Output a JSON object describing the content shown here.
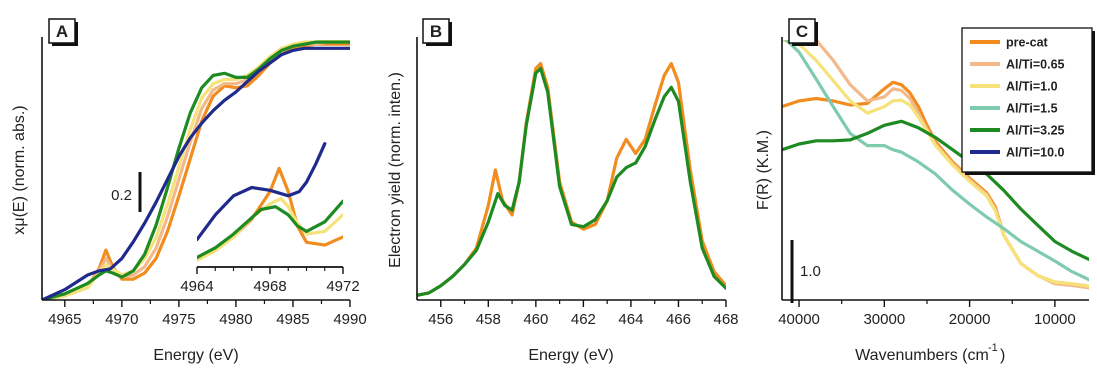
{
  "colors": {
    "pre-cat": "#F28C1E",
    "Al/Ti=0.65": "#F3B98A",
    "Al/Ti=1.0": "#F6E27A",
    "Al/Ti=1.5": "#7FCBAE",
    "Al/Ti=3.25": "#1E8A22",
    "Al/Ti=10.0": "#1F2A8C"
  },
  "chart_data": [
    {
      "panel": "A",
      "type": "line",
      "xlabel": "Energy (eV)",
      "ylabel": "xμ(E) (norm. abs.)",
      "xlim": [
        4963,
        4990
      ],
      "ylim": [
        0,
        1.25
      ],
      "xticks": [
        4965,
        4970,
        4975,
        4980,
        4985,
        4990
      ],
      "scale_bar": "0.2",
      "series": [
        {
          "name": "pre-cat",
          "x": [
            4963,
            4965,
            4967,
            4968,
            4968.6,
            4969.2,
            4970,
            4971,
            4972,
            4973,
            4974,
            4975,
            4976,
            4977,
            4978,
            4979,
            4980,
            4981,
            4982,
            4983,
            4984,
            4985,
            4986,
            4987,
            4988,
            4989,
            4990
          ],
          "y": [
            0,
            0.02,
            0.06,
            0.15,
            0.24,
            0.16,
            0.1,
            0.1,
            0.13,
            0.2,
            0.33,
            0.5,
            0.68,
            0.86,
            0.98,
            1.03,
            1.02,
            1.03,
            1.08,
            1.14,
            1.18,
            1.21,
            1.22,
            1.23,
            1.23,
            1.23,
            1.23
          ]
        },
        {
          "name": "Al/Ti=0.65",
          "x": [
            4963,
            4965,
            4967,
            4968,
            4968.6,
            4969.2,
            4970,
            4971,
            4972,
            4973,
            4974,
            4975,
            4976,
            4977,
            4978,
            4979,
            4980,
            4981,
            4982,
            4983,
            4984,
            4985,
            4986,
            4987,
            4988,
            4989,
            4990
          ],
          "y": [
            0,
            0.02,
            0.06,
            0.14,
            0.2,
            0.15,
            0.11,
            0.12,
            0.16,
            0.25,
            0.4,
            0.58,
            0.76,
            0.92,
            1.01,
            1.04,
            1.04,
            1.06,
            1.11,
            1.16,
            1.2,
            1.22,
            1.23,
            1.23,
            1.24,
            1.24,
            1.24
          ]
        },
        {
          "name": "Al/Ti=1.0",
          "x": [
            4963,
            4965,
            4967,
            4968,
            4968.6,
            4969.2,
            4970,
            4971,
            4972,
            4973,
            4974,
            4975,
            4976,
            4977,
            4978,
            4979,
            4980,
            4981,
            4982,
            4983,
            4984,
            4985,
            4986,
            4987,
            4988,
            4989,
            4990
          ],
          "y": [
            0,
            0.02,
            0.06,
            0.13,
            0.17,
            0.15,
            0.12,
            0.14,
            0.2,
            0.3,
            0.46,
            0.64,
            0.82,
            0.97,
            1.04,
            1.06,
            1.06,
            1.08,
            1.12,
            1.17,
            1.21,
            1.23,
            1.24,
            1.24,
            1.25,
            1.25,
            1.25
          ]
        },
        {
          "name": "Al/Ti=3.25",
          "x": [
            4963,
            4965,
            4967,
            4968,
            4968.6,
            4969.2,
            4970,
            4971,
            4972,
            4973,
            4974,
            4975,
            4976,
            4977,
            4978,
            4979,
            4980,
            4981,
            4982,
            4983,
            4984,
            4985,
            4986,
            4987,
            4988,
            4989,
            4990
          ],
          "y": [
            0,
            0.03,
            0.08,
            0.12,
            0.14,
            0.13,
            0.11,
            0.14,
            0.22,
            0.36,
            0.54,
            0.73,
            0.9,
            1.02,
            1.08,
            1.09,
            1.07,
            1.07,
            1.11,
            1.16,
            1.2,
            1.22,
            1.23,
            1.24,
            1.24,
            1.24,
            1.24
          ]
        },
        {
          "name": "Al/Ti=10.0",
          "x": [
            4963,
            4965,
            4967,
            4968,
            4969,
            4970,
            4971,
            4972,
            4973,
            4974,
            4975,
            4976,
            4977,
            4978,
            4979,
            4980,
            4981,
            4982,
            4983,
            4984,
            4985,
            4986,
            4987,
            4988,
            4989,
            4990
          ],
          "y": [
            0,
            0.05,
            0.12,
            0.14,
            0.15,
            0.2,
            0.28,
            0.37,
            0.47,
            0.58,
            0.69,
            0.78,
            0.85,
            0.91,
            0.96,
            1.0,
            1.05,
            1.1,
            1.14,
            1.18,
            1.2,
            1.21,
            1.21,
            1.21,
            1.21,
            1.21
          ]
        }
      ]
    },
    {
      "panel": "A-inset",
      "type": "line",
      "xlim": [
        4964,
        4972
      ],
      "xticks": [
        4964,
        4968,
        4972
      ],
      "ylim": [
        0,
        1
      ],
      "series": [
        {
          "name": "pre-cat",
          "x": [
            4964,
            4965,
            4966,
            4967,
            4968,
            4968.5,
            4969,
            4969.5,
            4970,
            4971,
            4972
          ],
          "y": [
            0.05,
            0.12,
            0.22,
            0.35,
            0.55,
            0.72,
            0.55,
            0.3,
            0.18,
            0.16,
            0.22
          ]
        },
        {
          "name": "Al/Ti=1.0",
          "x": [
            4964,
            4965,
            4966,
            4967,
            4968,
            4968.6,
            4969,
            4969.5,
            4970,
            4971,
            4972
          ],
          "y": [
            0.05,
            0.12,
            0.22,
            0.36,
            0.46,
            0.5,
            0.44,
            0.32,
            0.24,
            0.26,
            0.38
          ]
        },
        {
          "name": "Al/Ti=3.25",
          "x": [
            4964,
            4965,
            4966,
            4967,
            4967.5,
            4968.3,
            4969,
            4969.5,
            4970,
            4971,
            4972
          ],
          "y": [
            0.07,
            0.14,
            0.24,
            0.36,
            0.42,
            0.44,
            0.38,
            0.3,
            0.26,
            0.33,
            0.48
          ]
        },
        {
          "name": "Al/Ti=10.0",
          "x": [
            4964,
            4965,
            4966,
            4967,
            4968,
            4969,
            4969.6,
            4970,
            4970.5,
            4971
          ],
          "y": [
            0.2,
            0.38,
            0.52,
            0.58,
            0.56,
            0.52,
            0.55,
            0.62,
            0.75,
            0.9
          ]
        }
      ]
    },
    {
      "panel": "B",
      "type": "line",
      "xlabel": "Energy (eV)",
      "ylabel": "Electron yield (norm. inten.)",
      "xlim": [
        455,
        468
      ],
      "xticks": [
        456,
        458,
        460,
        462,
        464,
        466,
        468
      ],
      "ylim": [
        0,
        1.1
      ],
      "series": [
        {
          "name": "pre-cat",
          "x": [
            455,
            455.5,
            456,
            456.5,
            457,
            457.5,
            458,
            458.3,
            458.6,
            459,
            459.3,
            459.6,
            460,
            460.2,
            460.5,
            461,
            461.5,
            462,
            462.5,
            463,
            463.4,
            463.8,
            464.2,
            464.6,
            465,
            465.4,
            465.7,
            466,
            466.5,
            467,
            467.5,
            468
          ],
          "y": [
            0.02,
            0.03,
            0.06,
            0.1,
            0.15,
            0.22,
            0.4,
            0.55,
            0.42,
            0.36,
            0.5,
            0.75,
            0.98,
            1.0,
            0.9,
            0.5,
            0.33,
            0.3,
            0.32,
            0.42,
            0.6,
            0.68,
            0.62,
            0.68,
            0.82,
            0.95,
            1.0,
            0.92,
            0.55,
            0.25,
            0.12,
            0.06
          ]
        },
        {
          "name": "Al/Ti=3.25",
          "x": [
            455,
            455.5,
            456,
            456.5,
            457,
            457.5,
            458,
            458.4,
            458.7,
            459,
            459.3,
            459.6,
            460,
            460.2,
            460.5,
            461,
            461.5,
            462,
            462.5,
            463,
            463.4,
            463.8,
            464.2,
            464.6,
            465,
            465.4,
            465.7,
            466,
            466.5,
            467,
            467.5,
            468
          ],
          "y": [
            0.02,
            0.03,
            0.06,
            0.1,
            0.15,
            0.21,
            0.33,
            0.45,
            0.4,
            0.38,
            0.5,
            0.74,
            0.96,
            0.98,
            0.88,
            0.48,
            0.32,
            0.31,
            0.34,
            0.42,
            0.52,
            0.56,
            0.58,
            0.65,
            0.76,
            0.86,
            0.9,
            0.84,
            0.5,
            0.22,
            0.1,
            0.05
          ]
        }
      ]
    },
    {
      "panel": "C",
      "type": "line",
      "xlabel": "Wavenumbers (cm-1)",
      "ylabel": "F(R) (K.M.)",
      "xlim": [
        42000,
        6000
      ],
      "xticks": [
        40000,
        30000,
        20000,
        10000
      ],
      "ylim": [
        0,
        3.2
      ],
      "scale_bar": "1.0",
      "series": [
        {
          "name": "pre-cat",
          "x": [
            42000,
            40000,
            38000,
            36000,
            34000,
            32000,
            30000,
            29000,
            28000,
            27000,
            26000,
            25000,
            24000,
            22000,
            20000,
            18000,
            17000,
            16000,
            14000,
            12000,
            10000,
            8000,
            6000
          ],
          "y": [
            2.38,
            2.45,
            2.48,
            2.45,
            2.4,
            2.42,
            2.6,
            2.68,
            2.65,
            2.55,
            2.38,
            2.15,
            1.95,
            1.7,
            1.5,
            1.32,
            1.15,
            0.8,
            0.45,
            0.3,
            0.22,
            0.2,
            0.17
          ]
        },
        {
          "name": "Al/Ti=0.65",
          "x": [
            42000,
            40000,
            38000,
            36000,
            34000,
            32000,
            30000,
            29000,
            28000,
            27000,
            26000,
            25000,
            24000,
            22000,
            20000,
            18000,
            17000,
            16000,
            14000,
            12000,
            10000,
            8000,
            6000
          ],
          "y": [
            3.35,
            3.3,
            3.2,
            2.95,
            2.65,
            2.45,
            2.5,
            2.6,
            2.58,
            2.48,
            2.3,
            2.1,
            1.92,
            1.68,
            1.48,
            1.3,
            1.12,
            0.8,
            0.45,
            0.3,
            0.2,
            0.18,
            0.15
          ]
        },
        {
          "name": "Al/Ti=1.0",
          "x": [
            42000,
            40000,
            38000,
            36000,
            34000,
            32000,
            30000,
            29000,
            28000,
            27000,
            26000,
            25000,
            24000,
            22000,
            20000,
            18000,
            17000,
            16000,
            14000,
            12000,
            10000,
            8000,
            6000
          ],
          "y": [
            3.2,
            3.15,
            2.95,
            2.7,
            2.45,
            2.3,
            2.38,
            2.45,
            2.46,
            2.4,
            2.25,
            2.08,
            1.9,
            1.66,
            1.46,
            1.28,
            1.1,
            0.8,
            0.45,
            0.3,
            0.22,
            0.2,
            0.17
          ]
        },
        {
          "name": "Al/Ti=1.5",
          "x": [
            42000,
            40000,
            38000,
            36000,
            34000,
            32000,
            30000,
            29000,
            28000,
            26000,
            24000,
            22000,
            20000,
            18000,
            16000,
            14000,
            12000,
            10000,
            8000,
            6000
          ],
          "y": [
            3.25,
            3.05,
            2.72,
            2.38,
            2.05,
            1.9,
            1.9,
            1.85,
            1.82,
            1.7,
            1.55,
            1.35,
            1.18,
            1.02,
            0.88,
            0.72,
            0.6,
            0.48,
            0.35,
            0.25
          ]
        },
        {
          "name": "Al/Ti=3.25",
          "x": [
            42000,
            40000,
            38000,
            36000,
            34000,
            32000,
            30000,
            28000,
            26000,
            24000,
            22000,
            20000,
            18000,
            16000,
            14000,
            12000,
            10000,
            8000,
            6000
          ],
          "y": [
            1.85,
            1.92,
            1.96,
            1.96,
            1.97,
            2.05,
            2.15,
            2.2,
            2.12,
            2.0,
            1.85,
            1.7,
            1.55,
            1.35,
            1.12,
            0.92,
            0.72,
            0.6,
            0.5
          ]
        },
        {
          "name": "Al/Ti=10.0",
          "x": [
            42000,
            40000,
            38000,
            36000,
            34000,
            32000,
            30000,
            28000,
            26000,
            24000,
            22000,
            20000,
            18000,
            16000,
            14000,
            12000,
            10000,
            8000,
            6000
          ],
          "y": [
            1.85,
            1.92,
            1.96,
            1.96,
            1.97,
            2.05,
            2.15,
            2.2,
            2.12,
            2.0,
            1.85,
            1.7,
            1.55,
            1.35,
            1.12,
            0.92,
            0.72,
            0.6,
            0.5
          ]
        }
      ]
    }
  ],
  "legend": [
    "pre-cat",
    "Al/Ti=0.65",
    "Al/Ti=1.0",
    "Al/Ti=1.5",
    "Al/Ti=3.25",
    "Al/Ti=10.0"
  ]
}
